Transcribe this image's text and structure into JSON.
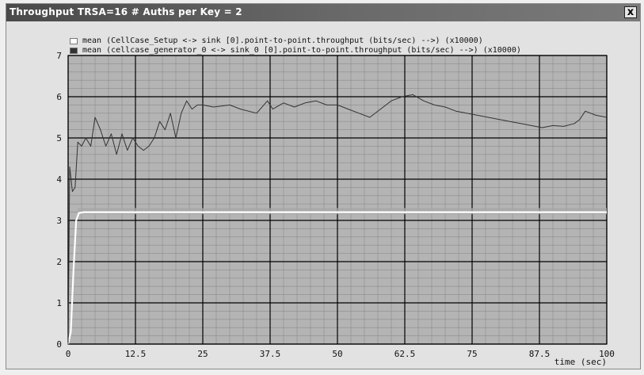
{
  "window": {
    "title": "Throughput TRSA=16  # Auths per Key = 2",
    "close_label": "x"
  },
  "colors": {
    "plot_background": "#b4b4b4",
    "grid_major": "#000000",
    "grid_minor": "#8c8c8c",
    "series_1": "#ffffff",
    "series_2": "#333333"
  },
  "chart_data": {
    "type": "line",
    "title": "",
    "xlabel": "time (sec)",
    "ylabel": "",
    "xlim": [
      0,
      100
    ],
    "ylim": [
      0,
      7
    ],
    "x_ticks": [
      "0",
      "12.5",
      "25",
      "37.5",
      "50",
      "62.5",
      "75",
      "87.5",
      "100"
    ],
    "y_ticks": [
      "0",
      "1",
      "2",
      "3",
      "4",
      "5",
      "6",
      "7"
    ],
    "grid": true,
    "legend_position": "top",
    "series": [
      {
        "name": "mean (CellCase_Setup <-> sink [0].point-to-point.throughput (bits/sec) -->) (x10000)",
        "color": "#ffffff",
        "x": [
          0,
          0.5,
          1,
          1.5,
          2,
          3,
          5,
          10,
          20,
          30,
          40,
          50,
          60,
          70,
          80,
          90,
          100
        ],
        "y": [
          0,
          0.3,
          1.8,
          3.0,
          3.18,
          3.2,
          3.2,
          3.2,
          3.2,
          3.2,
          3.2,
          3.2,
          3.2,
          3.2,
          3.2,
          3.2,
          3.2
        ]
      },
      {
        "name": "mean (cellcase_generator_0 <-> sink_0 [0].point-to-point.throughput (bits/sec) -->) (x10000)",
        "color": "#333333",
        "x": [
          0,
          0.3,
          0.8,
          1.3,
          1.8,
          2.5,
          3.3,
          4.2,
          5,
          6,
          7,
          8,
          9,
          10,
          11,
          12,
          13,
          14,
          15,
          16,
          17,
          18,
          19,
          20,
          21,
          22,
          23,
          24,
          25,
          27,
          30,
          32,
          35,
          37,
          38,
          40,
          42,
          43,
          44,
          46,
          48,
          50,
          52,
          54,
          56,
          58,
          60,
          62,
          64,
          66,
          68,
          70,
          72,
          74,
          76,
          78,
          80,
          82,
          84,
          86,
          88,
          90,
          92,
          94,
          95,
          96,
          98,
          100
        ],
        "y": [
          0,
          4.3,
          3.7,
          3.8,
          4.9,
          4.8,
          5.0,
          4.8,
          5.5,
          5.2,
          4.8,
          5.1,
          4.6,
          5.1,
          4.7,
          5.0,
          4.8,
          4.7,
          4.8,
          5.0,
          5.4,
          5.2,
          5.6,
          5.0,
          5.6,
          5.9,
          5.7,
          5.8,
          5.8,
          5.75,
          5.8,
          5.7,
          5.6,
          5.9,
          5.7,
          5.85,
          5.75,
          5.8,
          5.85,
          5.9,
          5.8,
          5.8,
          5.7,
          5.6,
          5.5,
          5.7,
          5.9,
          6.0,
          6.05,
          5.9,
          5.8,
          5.75,
          5.65,
          5.6,
          5.55,
          5.5,
          5.45,
          5.4,
          5.35,
          5.3,
          5.25,
          5.3,
          5.28,
          5.35,
          5.45,
          5.65,
          5.55,
          5.5
        ]
      }
    ]
  }
}
